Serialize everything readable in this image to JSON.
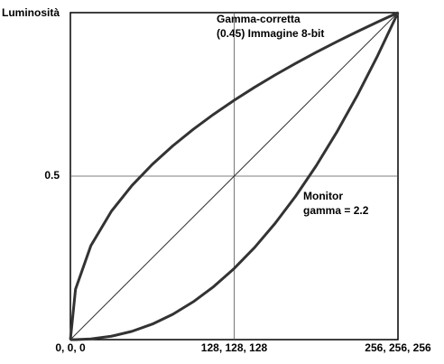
{
  "chart_data": {
    "type": "line",
    "y_label": "Luminosità",
    "annotations": [
      [
        "Gamma-corretta",
        "(0.45) Immagine 8-bit"
      ],
      [
        "Monitor",
        "gamma = 2.2"
      ]
    ],
    "x": [
      0,
      4,
      16,
      32,
      48,
      64,
      80,
      96,
      112,
      128,
      144,
      160,
      176,
      192,
      208,
      224,
      240,
      256
    ],
    "series": [
      {
        "color": "#333333",
        "line_width": 3,
        "values": [
          0,
          0.1539,
          0.2872,
          0.3923,
          0.4708,
          0.5359,
          0.5925,
          0.6431,
          0.6893,
          0.732,
          0.7719,
          0.8094,
          0.8448,
          0.8786,
          0.9108,
          0.9417,
          0.9714,
          1
        ]
      },
      {
        "color": "#333333",
        "line_width": 1,
        "values": [
          0,
          0.015625,
          0.0625,
          0.125,
          0.1875,
          0.25,
          0.3125,
          0.375,
          0.4375,
          0.5,
          0.5625,
          0.625,
          0.6875,
          0.75,
          0.8125,
          0.875,
          0.9375,
          1
        ]
      },
      {
        "color": "#333333",
        "line_width": 3,
        "values": [
          0,
          0.0001,
          0.00224,
          0.0103,
          0.0252,
          0.0474,
          0.0774,
          0.1156,
          0.1622,
          0.2176,
          0.282,
          0.3556,
          0.4385,
          0.5311,
          0.6334,
          0.7455,
          0.8677,
          1
        ]
      }
    ],
    "xlim": [
      0,
      256
    ],
    "ylim": [
      0,
      1
    ],
    "xticks": [
      {
        "value": 0,
        "label": "0, 0, 0"
      },
      {
        "value": 128,
        "label": "128, 128, 128"
      },
      {
        "value": 256,
        "label": "256, 256, 256"
      }
    ],
    "yticks": [
      0.5
    ],
    "grid": true
  }
}
